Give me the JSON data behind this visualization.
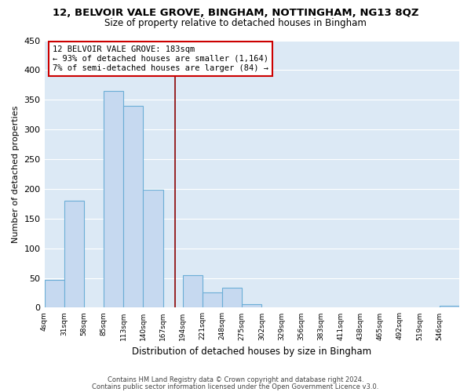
{
  "title": "12, BELVOIR VALE GROVE, BINGHAM, NOTTINGHAM, NG13 8QZ",
  "subtitle": "Size of property relative to detached houses in Bingham",
  "xlabel": "Distribution of detached houses by size in Bingham",
  "ylabel": "Number of detached properties",
  "bar_edges": [
    4,
    31,
    58,
    85,
    112,
    139,
    166,
    193,
    220,
    247,
    274,
    301,
    328,
    355,
    382,
    409,
    436,
    463,
    490,
    517,
    544,
    571
  ],
  "bar_heights": [
    47,
    180,
    0,
    365,
    340,
    199,
    0,
    55,
    26,
    33,
    6,
    0,
    0,
    0,
    0,
    0,
    0,
    0,
    0,
    0,
    3
  ],
  "bar_color": "#c6d9f0",
  "bar_edge_color": "#6baed6",
  "vline_x": 183,
  "vline_color": "#8b0000",
  "annotation_text_line1": "12 BELVOIR VALE GROVE: 183sqm",
  "annotation_text_line2": "← 93% of detached houses are smaller (1,164)",
  "annotation_text_line3": "7% of semi-detached houses are larger (84) →",
  "ylim": [
    0,
    450
  ],
  "yticks": [
    0,
    50,
    100,
    150,
    200,
    250,
    300,
    350,
    400,
    450
  ],
  "xtick_labels": [
    "4sqm",
    "31sqm",
    "58sqm",
    "85sqm",
    "113sqm",
    "140sqm",
    "167sqm",
    "194sqm",
    "221sqm",
    "248sqm",
    "275sqm",
    "302sqm",
    "329sqm",
    "356sqm",
    "383sqm",
    "411sqm",
    "438sqm",
    "465sqm",
    "492sqm",
    "519sqm",
    "546sqm"
  ],
  "footer_line1": "Contains HM Land Registry data © Crown copyright and database right 2024.",
  "footer_line2": "Contains public sector information licensed under the Open Government Licence v3.0.",
  "plot_bg_color": "#dce9f5",
  "fig_bg_color": "#ffffff",
  "grid_color": "#ffffff"
}
